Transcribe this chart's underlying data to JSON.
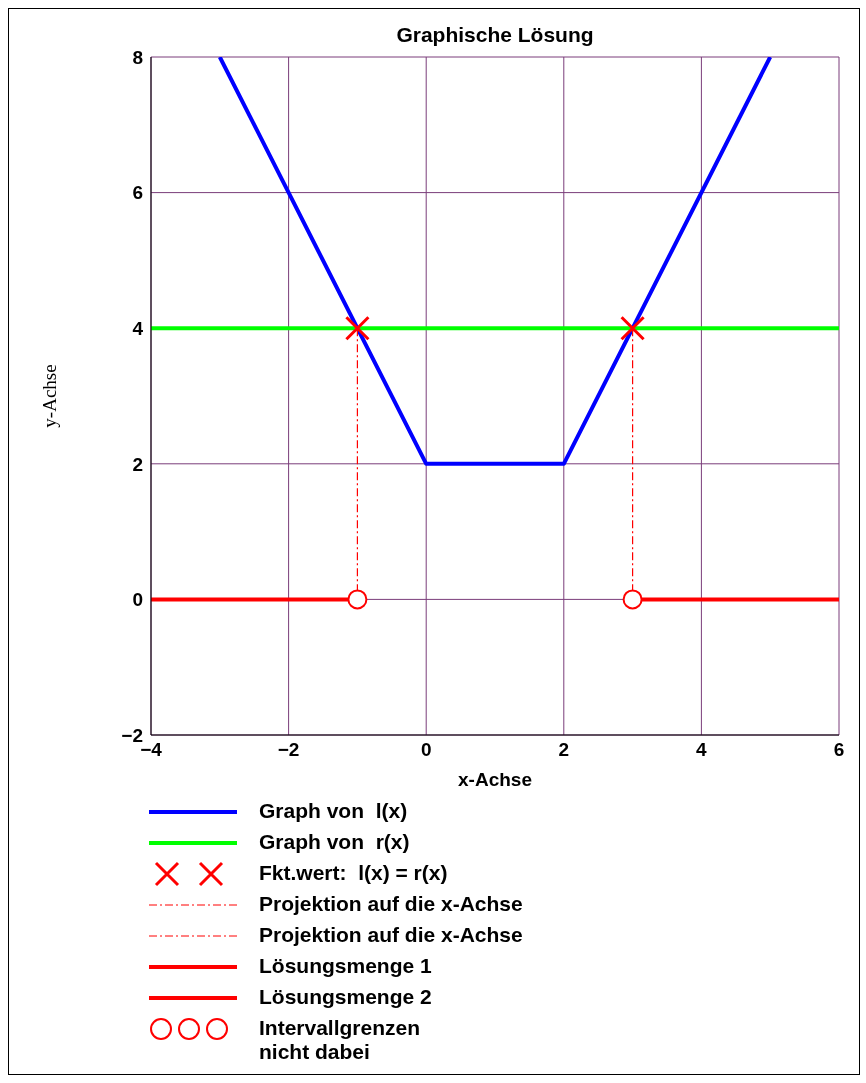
{
  "chart_data": {
    "type": "line",
    "title": "Graphische Lösung",
    "xlabel": "x-Achse",
    "ylabel": "y-Achse",
    "xlim": [
      -4,
      6
    ],
    "ylim": [
      -2,
      8
    ],
    "xticks": [
      {
        "value": -4,
        "label": "−4"
      },
      {
        "value": -2,
        "label": "−2"
      },
      0,
      2,
      4,
      6
    ],
    "yticks": [
      {
        "value": -2,
        "label": "−2"
      },
      0,
      2,
      4,
      6,
      8
    ],
    "grid": true,
    "legend": "bottom",
    "series": [
      {
        "name": "Graph von  l(x)",
        "color": "#0000ff",
        "line_style": "solid",
        "x": [
          -3,
          0,
          2,
          5
        ],
        "values": [
          8,
          2,
          2,
          8
        ]
      },
      {
        "name": "Graph von  r(x)",
        "color": "#00ff00",
        "line_style": "solid",
        "x": [
          -4,
          6
        ],
        "values": [
          4,
          4
        ]
      },
      {
        "name": "Fkt.wert:  l(x) = r(x)",
        "color": "#ff0000",
        "type": "scatter",
        "marker": "cross",
        "x": [
          -1,
          3
        ],
        "values": [
          4,
          4
        ]
      },
      {
        "name": "Projektion auf die x-Achse",
        "color": "#ff0000",
        "line_style": "dashed",
        "x": [
          -1,
          -1
        ],
        "values": [
          4,
          0
        ]
      },
      {
        "name": "Projektion auf die x-Achse",
        "color": "#ff0000",
        "line_style": "dashed",
        "x": [
          3,
          3
        ],
        "values": [
          4,
          0
        ]
      },
      {
        "name": "Lösungsmenge 1",
        "color": "#ff0000",
        "line_style": "solid",
        "x": [
          -4,
          -1
        ],
        "values": [
          0,
          0
        ]
      },
      {
        "name": "Lösungsmenge 2",
        "color": "#ff0000",
        "line_style": "solid",
        "x": [
          3,
          6
        ],
        "values": [
          0,
          0
        ]
      },
      {
        "name": "Intervallgrenzen nicht dabei",
        "color": "#ff0000",
        "type": "scatter",
        "marker": "circle",
        "x": [
          -1,
          3
        ],
        "values": [
          0,
          0
        ]
      }
    ]
  }
}
